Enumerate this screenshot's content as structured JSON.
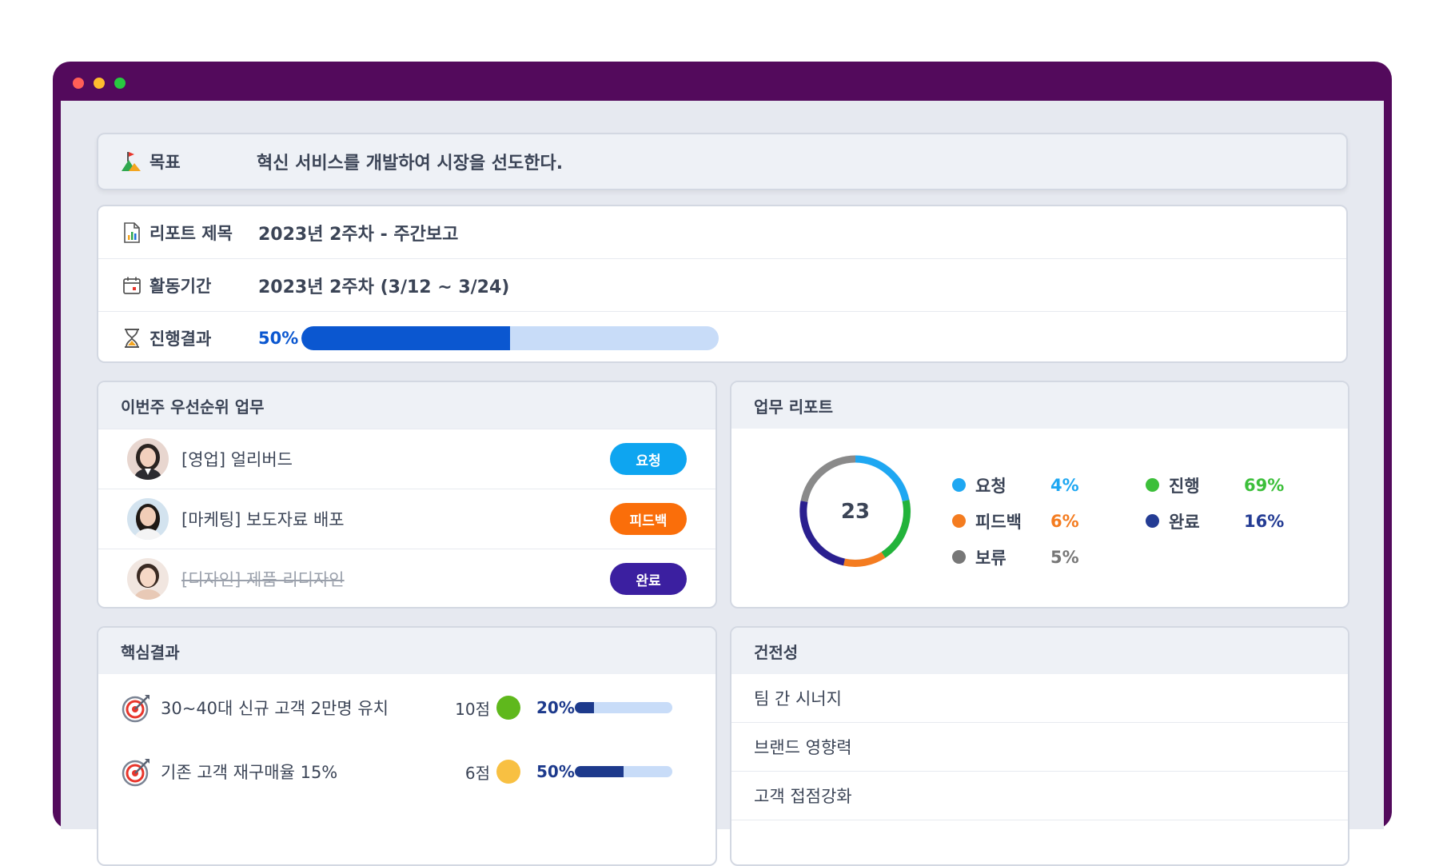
{
  "window": {
    "dot_colors": [
      "#ff5f57",
      "#febc2e",
      "#28c840"
    ]
  },
  "goal": {
    "icon": "flag-mountain-icon",
    "label": "목표",
    "value": "혁신 서비스를 개발하여 시장을 선도한다."
  },
  "info": {
    "title_icon": "report-doc-icon",
    "title_label": "리포트 제목",
    "title_value": "2023년 2주차 - 주간보고",
    "period_icon": "calendar-icon",
    "period_label": "활동기간",
    "period_value": "2023년 2주차 (3/12 ~ 3/24)",
    "progress_icon": "hourglass-icon",
    "progress_label": "진행결과",
    "progress_text": "50%",
    "progress_value": 0.5
  },
  "priority": {
    "title": "이번주 우선순위 업무",
    "tasks": [
      {
        "label": "[영업] 얼리버드",
        "status": "요청",
        "status_color": "#0ea5f0",
        "done": false
      },
      {
        "label": "[마케팅] 보도자료 배포",
        "status": "피드백",
        "status_color": "#fa6e0a",
        "done": false
      },
      {
        "label": "[디자인] 제품 리디자인",
        "status": "완료",
        "status_color": "#3b1fa0",
        "done": true
      }
    ]
  },
  "report": {
    "title": "업무 리포트",
    "total": "23",
    "legend": [
      {
        "name": "요청",
        "value": "4%",
        "color": "#1ea7f2"
      },
      {
        "name": "피드백",
        "value": "6%",
        "color": "#f47c20"
      },
      {
        "name": "보류",
        "value": "5%",
        "color": "#777777"
      },
      {
        "name": "진행",
        "value": "69%",
        "color": "#3cbf3a"
      },
      {
        "name": "완료",
        "value": "16%",
        "color": "#243c94"
      }
    ]
  },
  "key_results": {
    "title": "핵심결과",
    "items": [
      {
        "label": "30~40대 신규 고객 2만명 유치",
        "score": "10점",
        "status_color": "#5fb81c",
        "pct": "20%",
        "progress": 0.2
      },
      {
        "label": "기존 고객 재구매율 15%",
        "score": "6점",
        "status_color": "#f8c042",
        "pct": "50%",
        "progress": 0.5
      }
    ]
  },
  "health": {
    "title": "건전성",
    "items": [
      "팀 간 시너지",
      "브랜드 영향력",
      "고객 접점강화"
    ]
  }
}
